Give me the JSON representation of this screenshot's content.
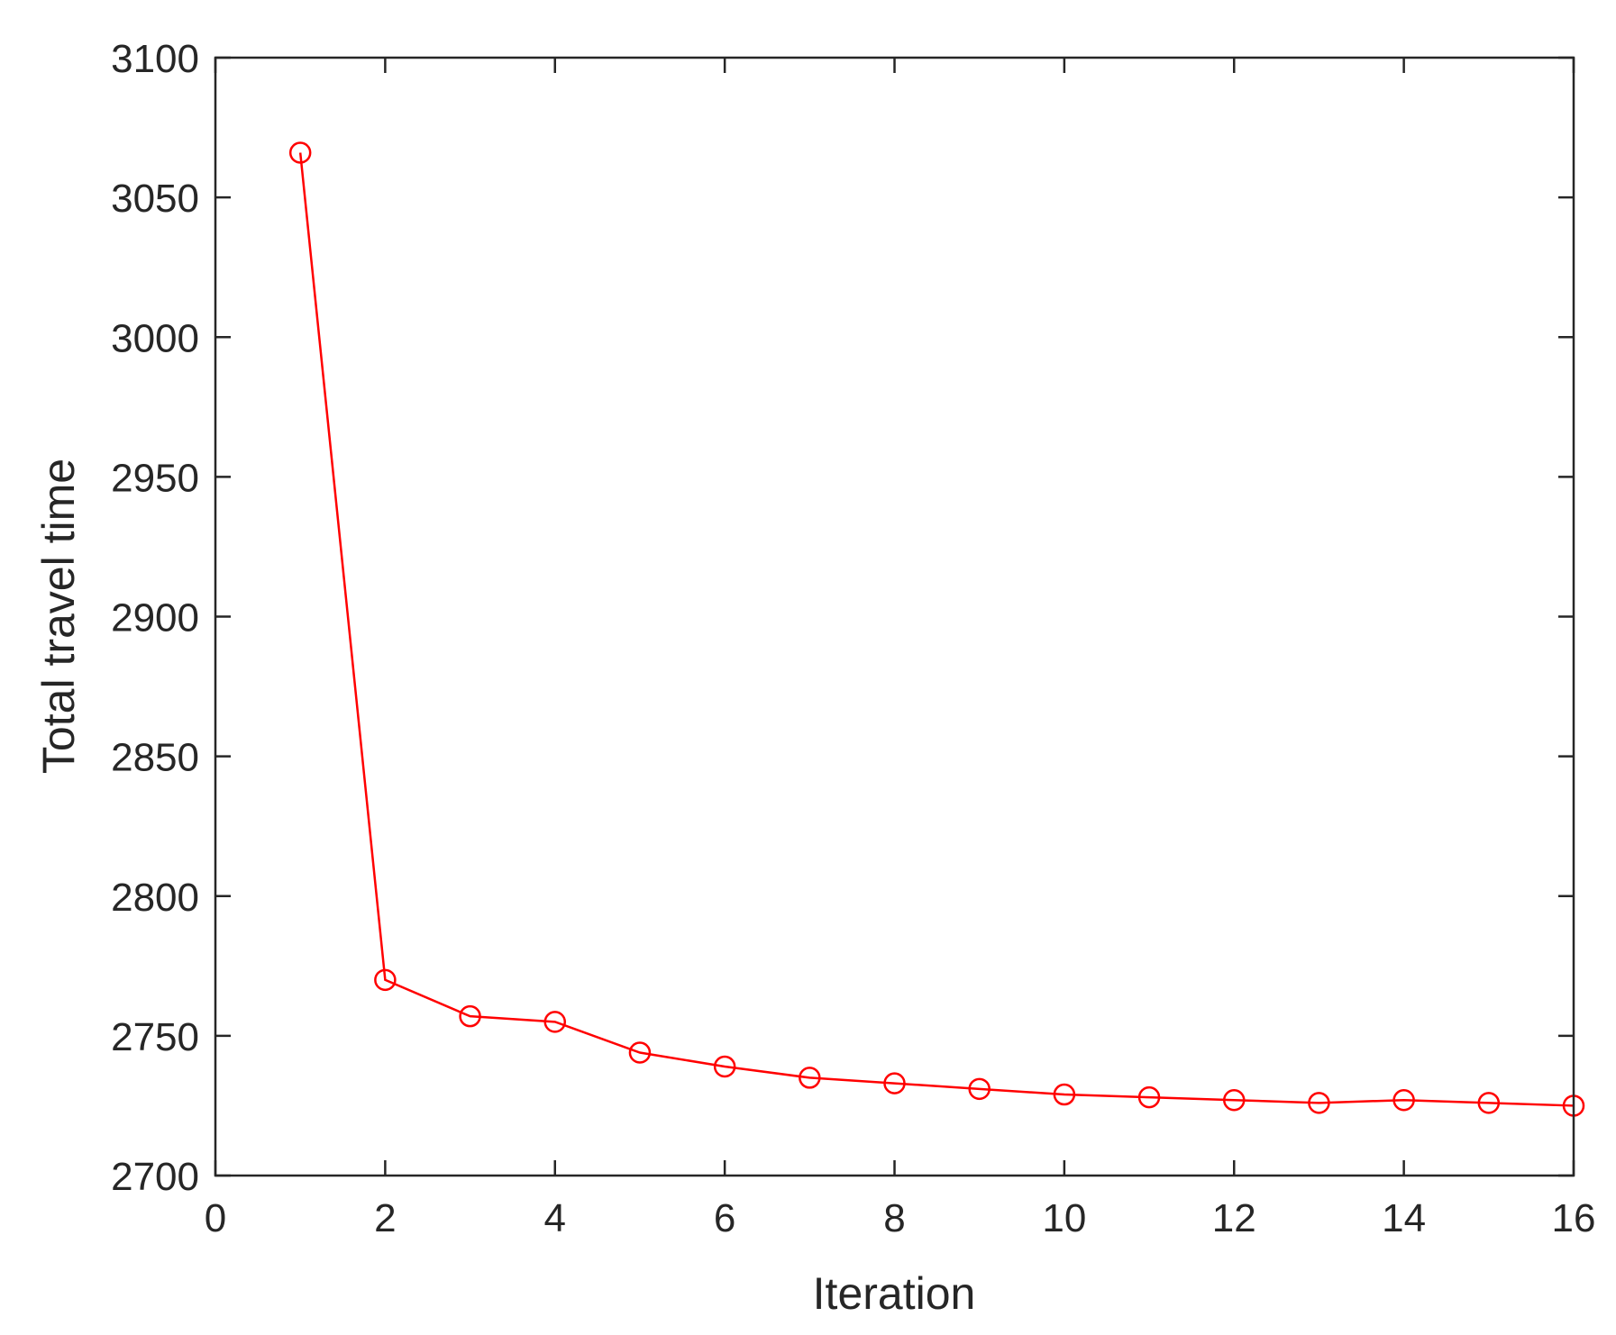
{
  "chart_data": {
    "type": "line",
    "title": "",
    "xlabel": "Iteration",
    "ylabel": "Total travel time",
    "xlim": [
      0,
      16
    ],
    "ylim": [
      2700,
      3100
    ],
    "xticks": [
      0,
      2,
      4,
      6,
      8,
      10,
      12,
      14,
      16
    ],
    "yticks": [
      2700,
      2750,
      2800,
      2850,
      2900,
      2950,
      3000,
      3050,
      3100
    ],
    "grid": false,
    "legend": "none",
    "series": [
      {
        "color": "#ff0000",
        "marker": "circle",
        "x": [
          1,
          2,
          3,
          4,
          5,
          6,
          7,
          8,
          9,
          10,
          11,
          12,
          13,
          14,
          15,
          16
        ],
        "y": [
          3066,
          2770,
          2757,
          2755,
          2744,
          2739,
          2735,
          2733,
          2731,
          2729,
          2728,
          2727,
          2726,
          2727,
          2726,
          2725
        ]
      }
    ]
  }
}
